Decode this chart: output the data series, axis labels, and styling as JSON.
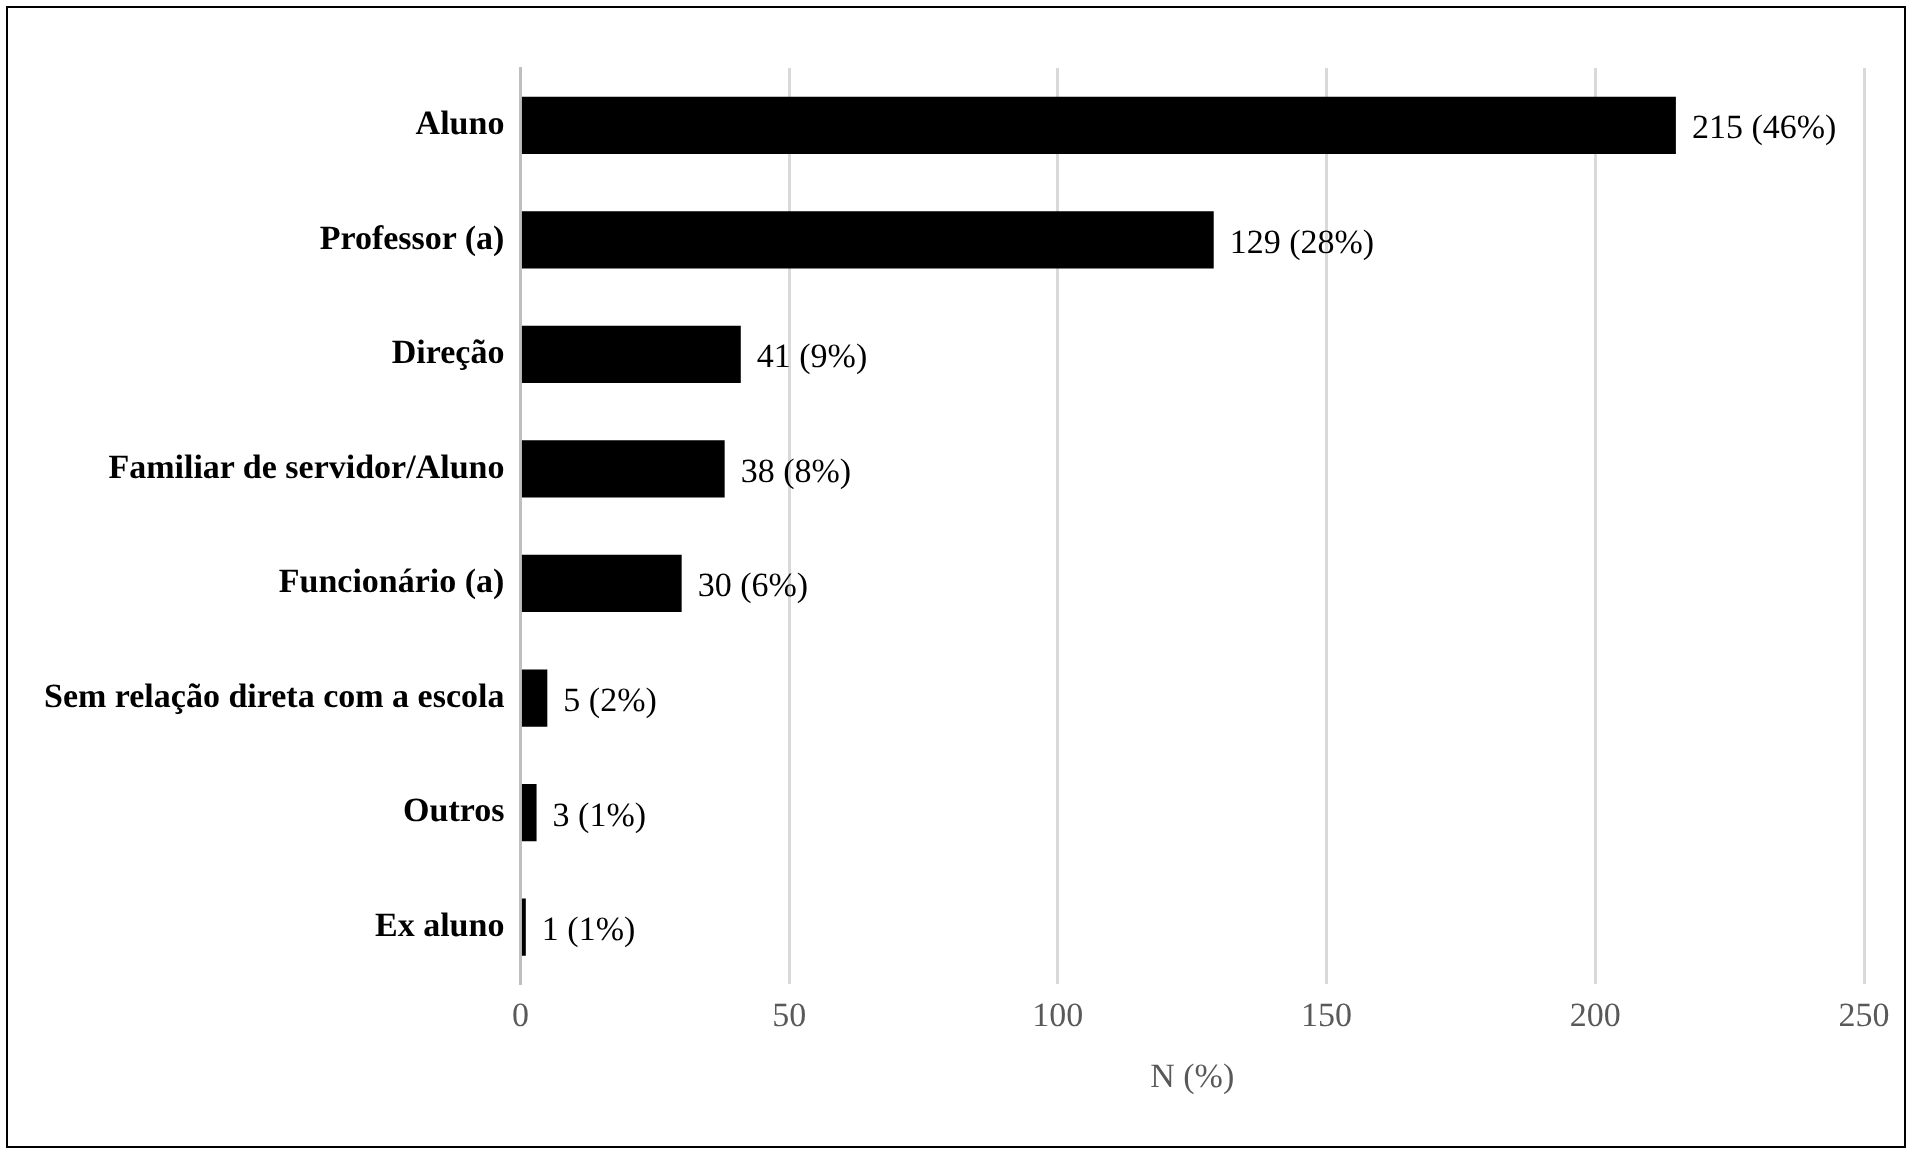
{
  "chart_data": {
    "type": "bar",
    "orientation": "horizontal",
    "xlabel": "N (%)",
    "categories": [
      "Aluno",
      "Professor (a)",
      "Direção",
      "Familiar de servidor/Aluno",
      "Funcionário (a)",
      "Sem relação direta com a escola",
      "Outros",
      "Ex aluno"
    ],
    "values": [
      215,
      129,
      41,
      38,
      30,
      5,
      3,
      1
    ],
    "value_labels": [
      "215 (46%)",
      "129 (28%)",
      "41 (9%)",
      "38 (8%)",
      "30 (6%)",
      "5 (2%)",
      "3 (1%)",
      "1 (1%)"
    ],
    "color": "#000000",
    "xlim": [
      0,
      250
    ],
    "xticks": [
      0,
      50,
      100,
      150,
      200,
      250
    ],
    "grid": "x",
    "legend": false
  }
}
